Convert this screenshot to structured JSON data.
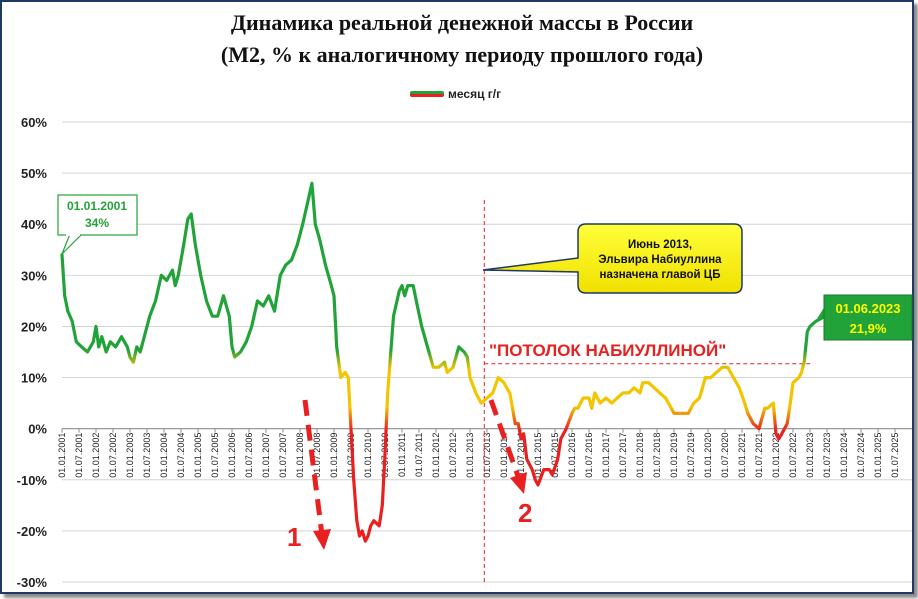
{
  "chart_data": {
    "type": "line",
    "title_line1": "Динамика реальной денежной массы в России",
    "title_line2": "(М2, % к аналогичному периоду прошлого года)",
    "legend": "месяц г/г",
    "ylim": [
      -30,
      60
    ],
    "yticks": [
      "60%",
      "50%",
      "40%",
      "30%",
      "20%",
      "10%",
      "0%",
      "-10%",
      "-20%",
      "-30%"
    ],
    "ytick_values": [
      60,
      50,
      40,
      30,
      20,
      10,
      0,
      -10,
      -20,
      -30
    ],
    "xlim": [
      2001.0,
      2026.0
    ],
    "xticks": [
      "01.01.2001",
      "01.07.2001",
      "01.01.2002",
      "01.07.2002",
      "01.01.2003",
      "01.07.2003",
      "01.01.2004",
      "01.07.2004",
      "01.01.2005",
      "01.07.2005",
      "01.01.2006",
      "01.07.2006",
      "01.01.2007",
      "01.07.2007",
      "01.01.2008",
      "01.07.2008",
      "01.01.2009",
      "01.07.2009",
      "01.01.2010",
      "01.07.2010",
      "01.01.2011",
      "01.07.2011",
      "01.01.2012",
      "01.07.2012",
      "01.01.2013",
      "01.07.2013",
      "01.01.2014",
      "01.07.2014",
      "01.01.2015",
      "01.07.2015",
      "01.01.2016",
      "01.07.2016",
      "01.01.2017",
      "01.07.2017",
      "01.01.2018",
      "01.07.2018",
      "01.01.2019",
      "01.07.2019",
      "01.01.2020",
      "01.07.2020",
      "01.01.2021",
      "01.07.2021",
      "01.01.2022",
      "01.07.2022",
      "01.01.2023",
      "01.07.2023",
      "01.01.2024",
      "01.07.2024",
      "01.01.2025",
      "01.07.2025"
    ],
    "grid": true,
    "colors": {
      "green": "#22a33a",
      "yellow": "#f2c500",
      "red": "#e82020",
      "axis": "#888888"
    },
    "series": [
      {
        "name": "месяц г/г",
        "points": [
          [
            2001.0,
            34
          ],
          [
            2001.08,
            26
          ],
          [
            2001.17,
            23
          ],
          [
            2001.3,
            21
          ],
          [
            2001.42,
            17
          ],
          [
            2001.58,
            16
          ],
          [
            2001.75,
            15
          ],
          [
            2001.92,
            17
          ],
          [
            2002.0,
            20
          ],
          [
            2002.08,
            16
          ],
          [
            2002.17,
            18
          ],
          [
            2002.3,
            15
          ],
          [
            2002.42,
            17
          ],
          [
            2002.58,
            16
          ],
          [
            2002.75,
            18
          ],
          [
            2002.92,
            16
          ],
          [
            2003.0,
            14
          ],
          [
            2003.1,
            13
          ],
          [
            2003.2,
            16
          ],
          [
            2003.3,
            15
          ],
          [
            2003.42,
            18
          ],
          [
            2003.58,
            22
          ],
          [
            2003.75,
            25
          ],
          [
            2003.92,
            30
          ],
          [
            2004.08,
            29
          ],
          [
            2004.25,
            31
          ],
          [
            2004.33,
            28
          ],
          [
            2004.42,
            30
          ],
          [
            2004.58,
            36
          ],
          [
            2004.7,
            41
          ],
          [
            2004.8,
            42
          ],
          [
            2004.92,
            36
          ],
          [
            2005.08,
            30
          ],
          [
            2005.25,
            25
          ],
          [
            2005.42,
            22
          ],
          [
            2005.58,
            22
          ],
          [
            2005.75,
            26
          ],
          [
            2005.92,
            22
          ],
          [
            2006.0,
            16
          ],
          [
            2006.08,
            14
          ],
          [
            2006.25,
            15
          ],
          [
            2006.42,
            17
          ],
          [
            2006.58,
            20
          ],
          [
            2006.75,
            25
          ],
          [
            2006.92,
            24
          ],
          [
            2007.08,
            26
          ],
          [
            2007.25,
            23
          ],
          [
            2007.42,
            30
          ],
          [
            2007.58,
            32
          ],
          [
            2007.75,
            33
          ],
          [
            2007.92,
            36
          ],
          [
            2008.08,
            40
          ],
          [
            2008.25,
            45
          ],
          [
            2008.35,
            48
          ],
          [
            2008.45,
            40
          ],
          [
            2008.58,
            37
          ],
          [
            2008.75,
            32
          ],
          [
            2008.92,
            28
          ],
          [
            2009.0,
            26
          ],
          [
            2009.08,
            16
          ],
          [
            2009.2,
            10
          ],
          [
            2009.33,
            11
          ],
          [
            2009.42,
            10
          ],
          [
            2009.5,
            0
          ],
          [
            2009.58,
            -10
          ],
          [
            2009.67,
            -18
          ],
          [
            2009.75,
            -21
          ],
          [
            2009.83,
            -20
          ],
          [
            2009.92,
            -22
          ],
          [
            2010.0,
            -21
          ],
          [
            2010.08,
            -19
          ],
          [
            2010.17,
            -18
          ],
          [
            2010.33,
            -19
          ],
          [
            2010.42,
            -15
          ],
          [
            2010.5,
            -5
          ],
          [
            2010.58,
            7
          ],
          [
            2010.67,
            15
          ],
          [
            2010.75,
            22
          ],
          [
            2010.92,
            27
          ],
          [
            2011.0,
            28
          ],
          [
            2011.08,
            26
          ],
          [
            2011.17,
            28
          ],
          [
            2011.33,
            28
          ],
          [
            2011.42,
            25
          ],
          [
            2011.58,
            20
          ],
          [
            2011.75,
            16
          ],
          [
            2011.92,
            12
          ],
          [
            2012.08,
            12
          ],
          [
            2012.25,
            13
          ],
          [
            2012.33,
            11
          ],
          [
            2012.5,
            12
          ],
          [
            2012.67,
            16
          ],
          [
            2012.83,
            15
          ],
          [
            2012.92,
            14
          ],
          [
            2013.0,
            10
          ],
          [
            2013.17,
            7
          ],
          [
            2013.33,
            5
          ],
          [
            2013.5,
            6
          ],
          [
            2013.67,
            7
          ],
          [
            2013.83,
            10
          ],
          [
            2014.0,
            9
          ],
          [
            2014.08,
            8
          ],
          [
            2014.17,
            7
          ],
          [
            2014.33,
            1
          ],
          [
            2014.42,
            1
          ],
          [
            2014.5,
            -2
          ],
          [
            2014.58,
            -1
          ],
          [
            2014.67,
            -6
          ],
          [
            2014.83,
            -8
          ],
          [
            2014.92,
            -10
          ],
          [
            2015.0,
            -11
          ],
          [
            2015.17,
            -8
          ],
          [
            2015.33,
            -8
          ],
          [
            2015.42,
            -9
          ],
          [
            2015.58,
            -6
          ],
          [
            2015.67,
            -2
          ],
          [
            2015.83,
            0
          ],
          [
            2016.0,
            3
          ],
          [
            2016.08,
            4
          ],
          [
            2016.17,
            4
          ],
          [
            2016.33,
            6
          ],
          [
            2016.5,
            6
          ],
          [
            2016.58,
            4
          ],
          [
            2016.67,
            7
          ],
          [
            2016.83,
            5
          ],
          [
            2017.0,
            6
          ],
          [
            2017.17,
            5
          ],
          [
            2017.33,
            6
          ],
          [
            2017.5,
            7
          ],
          [
            2017.67,
            7
          ],
          [
            2017.83,
            8
          ],
          [
            2018.0,
            7
          ],
          [
            2018.08,
            9
          ],
          [
            2018.25,
            9
          ],
          [
            2018.42,
            8
          ],
          [
            2018.58,
            7
          ],
          [
            2018.75,
            6
          ],
          [
            2018.92,
            4
          ],
          [
            2019.0,
            3
          ],
          [
            2019.08,
            3
          ],
          [
            2019.25,
            3
          ],
          [
            2019.42,
            3
          ],
          [
            2019.58,
            5
          ],
          [
            2019.75,
            6
          ],
          [
            2019.92,
            10
          ],
          [
            2020.08,
            10
          ],
          [
            2020.25,
            11
          ],
          [
            2020.42,
            12
          ],
          [
            2020.58,
            12
          ],
          [
            2020.75,
            10
          ],
          [
            2020.92,
            8
          ],
          [
            2021.08,
            5
          ],
          [
            2021.17,
            3
          ],
          [
            2021.33,
            1
          ],
          [
            2021.5,
            0
          ],
          [
            2021.67,
            4
          ],
          [
            2021.75,
            4
          ],
          [
            2021.92,
            5
          ],
          [
            2022.0,
            -1
          ],
          [
            2022.08,
            -2
          ],
          [
            2022.17,
            -1
          ],
          [
            2022.33,
            1
          ],
          [
            2022.42,
            5
          ],
          [
            2022.5,
            9
          ],
          [
            2022.67,
            10
          ],
          [
            2022.75,
            11
          ],
          [
            2022.83,
            13
          ],
          [
            2022.92,
            19
          ],
          [
            2023.0,
            20
          ],
          [
            2023.17,
            21
          ],
          [
            2023.42,
            21.9
          ]
        ]
      }
    ],
    "annotations": {
      "start_box": {
        "date": "01.01.2001",
        "value": "34%"
      },
      "end_box": {
        "date": "01.06.2023",
        "value": "21,9%"
      },
      "callout": [
        "Июнь 2013,",
        "Эльвира Набиуллина",
        "назначена главой ЦБ"
      ],
      "ceiling_label": "\"ПОТОЛОК НАБИУЛЛИНОЙ\"",
      "arrow1_label": "1",
      "arrow2_label": "2"
    }
  }
}
